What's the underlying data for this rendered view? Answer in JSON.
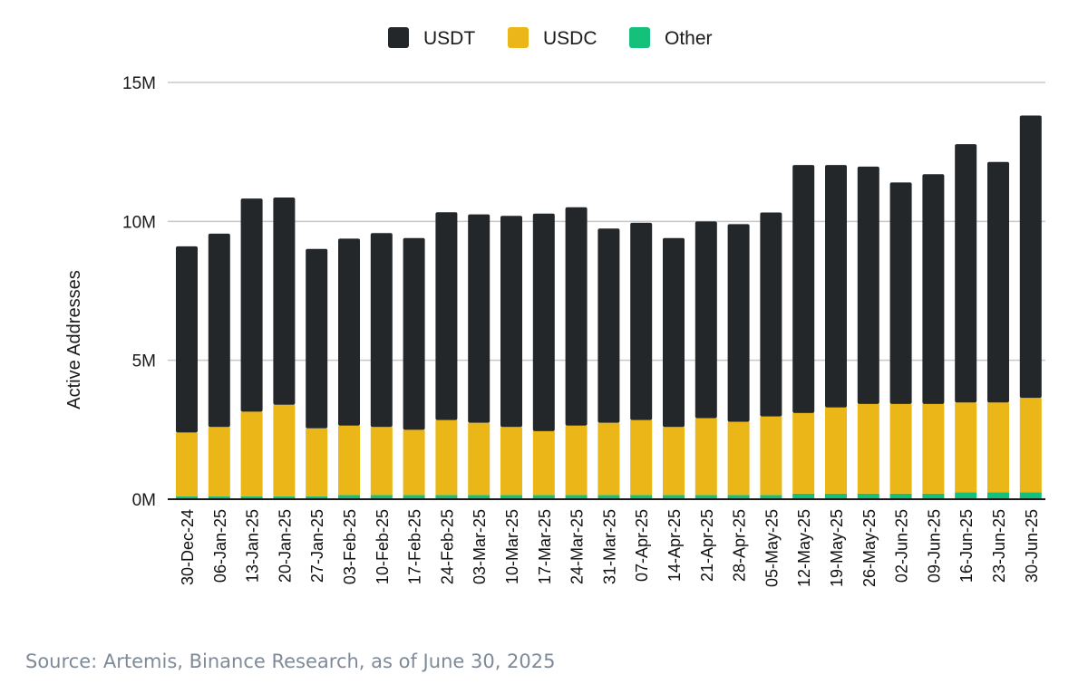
{
  "chart_data": {
    "type": "bar",
    "stacked": true,
    "ylabel": "Active Addresses",
    "ylim": [
      0,
      15000000
    ],
    "yticks": [
      {
        "value": 0,
        "label": "0M"
      },
      {
        "value": 5000000,
        "label": "5M"
      },
      {
        "value": 10000000,
        "label": "10M"
      },
      {
        "value": 15000000,
        "label": "15M"
      }
    ],
    "grid": true,
    "legend_position": "top-center",
    "categories": [
      "30-Dec-24",
      "06-Jan-25",
      "13-Jan-25",
      "20-Jan-25",
      "27-Jan-25",
      "03-Feb-25",
      "10-Feb-25",
      "17-Feb-25",
      "24-Feb-25",
      "03-Mar-25",
      "10-Mar-25",
      "17-Mar-25",
      "24-Mar-25",
      "31-Mar-25",
      "07-Apr-25",
      "14-Apr-25",
      "21-Apr-25",
      "28-Apr-25",
      "05-May-25",
      "12-May-25",
      "19-May-25",
      "26-May-25",
      "02-Jun-25",
      "09-Jun-25",
      "16-Jun-25",
      "23-Jun-25",
      "30-Jun-25"
    ],
    "series": [
      {
        "name": "Other",
        "color": "#14c07a",
        "values": [
          100000,
          100000,
          100000,
          100000,
          100000,
          150000,
          150000,
          150000,
          150000,
          150000,
          150000,
          150000,
          150000,
          150000,
          150000,
          150000,
          150000,
          150000,
          150000,
          200000,
          200000,
          200000,
          200000,
          200000,
          250000,
          250000,
          250000
        ]
      },
      {
        "name": "USDC",
        "color": "#ebb617",
        "values": [
          2300000,
          2500000,
          3050000,
          3300000,
          2450000,
          2500000,
          2450000,
          2350000,
          2700000,
          2600000,
          2450000,
          2300000,
          2500000,
          2600000,
          2700000,
          2450000,
          2770000,
          2640000,
          2830000,
          2900000,
          3100000,
          3230000,
          3230000,
          3230000,
          3230000,
          3230000,
          3400000
        ]
      },
      {
        "name": "USDT",
        "color": "#23272a",
        "values": [
          6700000,
          6960000,
          7670000,
          7460000,
          6460000,
          6730000,
          6980000,
          6900000,
          7480000,
          7500000,
          7600000,
          7830000,
          7860000,
          6990000,
          7100000,
          6800000,
          7080000,
          7110000,
          7340000,
          8930000,
          8730000,
          8540000,
          7970000,
          8270000,
          9300000,
          8660000,
          10160000
        ]
      }
    ],
    "legend": [
      {
        "name": "USDT",
        "color": "#23272a"
      },
      {
        "name": "USDC",
        "color": "#ebb617"
      },
      {
        "name": "Other",
        "color": "#14c07a"
      }
    ]
  },
  "source": "Source: Artemis, Binance Research, as of June 30, 2025"
}
